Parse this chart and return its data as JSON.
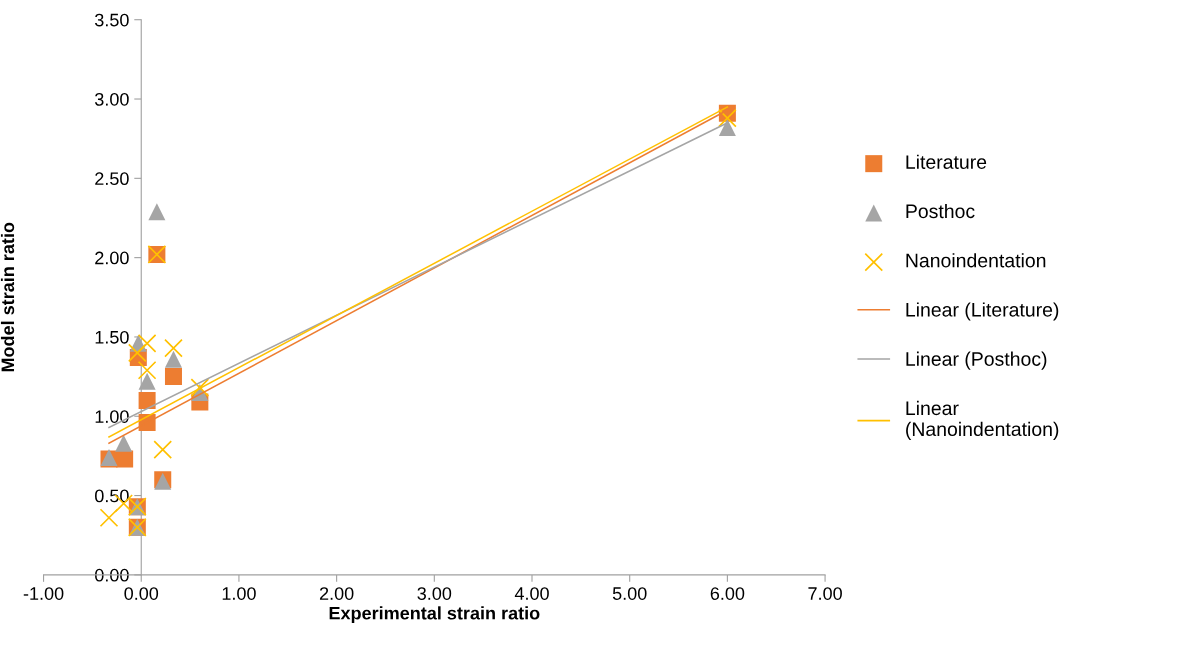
{
  "chart_data": {
    "type": "scatter",
    "xlabel": "Experimental strain ratio",
    "ylabel": "Model strain ratio",
    "xlim": [
      -1,
      7
    ],
    "ylim": [
      0,
      3.5
    ],
    "xticks": [
      {
        "value": -1,
        "label": "-1.00"
      },
      {
        "value": 0,
        "label": "0.00"
      },
      {
        "value": 1,
        "label": "1.00"
      },
      {
        "value": 2,
        "label": "2.00"
      },
      {
        "value": 3,
        "label": "3.00"
      },
      {
        "value": 4,
        "label": "4.00"
      },
      {
        "value": 5,
        "label": "5.00"
      },
      {
        "value": 6,
        "label": "6.00"
      },
      {
        "value": 7,
        "label": "7.00"
      }
    ],
    "yticks": [
      {
        "value": 0,
        "label": "0.00"
      },
      {
        "value": 0.5,
        "label": "0.50"
      },
      {
        "value": 1,
        "label": "1.00"
      },
      {
        "value": 1.5,
        "label": "1.50"
      },
      {
        "value": 2,
        "label": "2.00"
      },
      {
        "value": 2.5,
        "label": "2.50"
      },
      {
        "value": 3,
        "label": "3.00"
      },
      {
        "value": 3.5,
        "label": "3.50"
      }
    ],
    "grid": false,
    "legend": "right",
    "series": [
      {
        "name": "Literature",
        "color": "#ed7d31",
        "marker": "square",
        "x": [
          -0.33,
          -0.17,
          0.06,
          0.06,
          0.22,
          0.6,
          -0.04,
          -0.04,
          0.33,
          -0.03,
          0.16,
          6.0
        ],
        "values": [
          0.73,
          0.73,
          1.1,
          0.96,
          0.6,
          1.09,
          0.43,
          0.3,
          1.25,
          1.37,
          2.02,
          2.91
        ]
      },
      {
        "name": "Posthoc",
        "color": "#a5a5a5",
        "marker": "triangle",
        "x": [
          -0.33,
          -0.18,
          -0.04,
          -0.04,
          0.22,
          0.6,
          0.06,
          -0.03,
          0.33,
          0.16,
          6.0
        ],
        "values": [
          0.74,
          0.83,
          0.43,
          0.3,
          0.59,
          1.15,
          1.22,
          1.46,
          1.36,
          2.29,
          2.82
        ]
      },
      {
        "name": "Nanoindentation",
        "color": "#ffc000",
        "marker": "cross",
        "x": [
          -0.33,
          -0.18,
          -0.04,
          -0.04,
          0.22,
          0.6,
          0.06,
          -0.04,
          0.06,
          0.33,
          0.16,
          6.0
        ],
        "values": [
          0.36,
          0.45,
          0.43,
          0.3,
          0.79,
          1.18,
          1.29,
          1.4,
          1.46,
          1.43,
          2.02,
          2.88
        ]
      },
      {
        "name": "Linear (Literature)",
        "type": "line",
        "color": "#ed7d31",
        "x": [
          -0.33,
          6.0
        ],
        "values": [
          0.83,
          2.93
        ]
      },
      {
        "name": "Linear (Posthoc)",
        "type": "line",
        "color": "#a5a5a5",
        "x": [
          -0.33,
          6.0
        ],
        "values": [
          0.93,
          2.85
        ]
      },
      {
        "name": "Linear (Nanoindentation)",
        "type": "line",
        "color": "#ffc000",
        "x": [
          -0.33,
          6.0
        ],
        "values": [
          0.87,
          2.95
        ]
      }
    ]
  }
}
